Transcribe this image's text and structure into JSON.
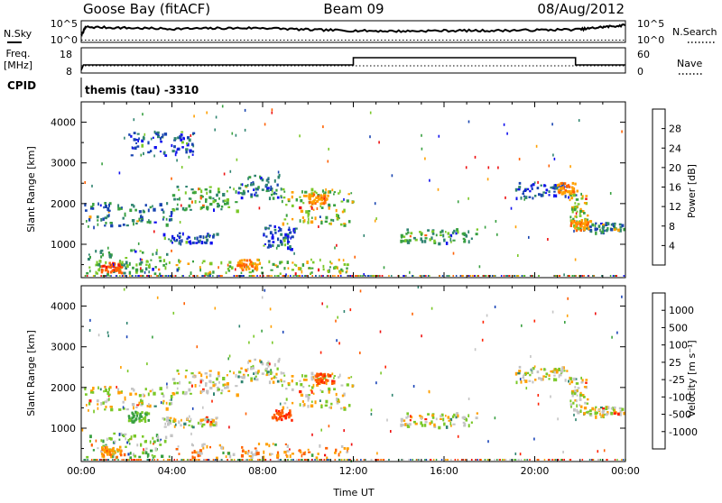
{
  "header": {
    "station": "Goose Bay (fitACF)",
    "beam": "Beam 09",
    "date": "08/Aug/2012"
  },
  "top_panels": {
    "nsky_label": "N.Sky",
    "nsearch_label": "N.Search",
    "noise_ticks": [
      "10^5",
      "10^0"
    ],
    "freq_label": "Freq.",
    "freq_unit": "[MHz]",
    "freq_ticks": [
      "18",
      "8"
    ],
    "nave_label": "Nave",
    "nave_ticks": [
      "60",
      "0"
    ],
    "cpid_label": "CPID",
    "cpid_text": "themis (tau) -3310"
  },
  "chart_data": [
    {
      "type": "line",
      "name": "noise",
      "series": [
        {
          "name": "N.Sky",
          "x": [
            0,
            0.2,
            2,
            4,
            6,
            8,
            10,
            12,
            14,
            16,
            18,
            20,
            22,
            23,
            24
          ],
          "values": [
            0.3,
            0.75,
            0.7,
            0.65,
            0.68,
            0.7,
            0.6,
            0.55,
            0.52,
            0.55,
            0.55,
            0.58,
            0.62,
            0.75,
            0.85
          ]
        },
        {
          "name": "N.Search",
          "x": [
            0,
            24
          ],
          "values": [
            0,
            0
          ]
        }
      ]
    },
    {
      "type": "line",
      "name": "frequency-nave",
      "series": [
        {
          "name": "Freq. [MHz]",
          "x": [
            0,
            0.1,
            12,
            12,
            21.8,
            21.8,
            24
          ],
          "values": [
            8,
            11,
            11,
            15,
            15,
            11,
            11
          ]
        },
        {
          "name": "Nave",
          "x": [
            0,
            24
          ],
          "values": [
            10,
            10
          ]
        }
      ]
    },
    {
      "type": "heatmap",
      "name": "power",
      "xlabel": "",
      "ylabel": "Slant Range [km]",
      "x_range": [
        0,
        24
      ],
      "y_range": [
        180,
        4500
      ],
      "y_ticks": [
        1000,
        2000,
        3000,
        4000
      ],
      "colorbar_label": "Power [dB]",
      "colorbar_ticks": [
        4,
        8,
        12,
        16,
        20,
        24,
        28
      ],
      "colors": [
        "#1010ee",
        "#1844b0",
        "#2f8470",
        "#38a040",
        "#7ac828",
        "#ffa000",
        "#ff6000",
        "#ee1010"
      ],
      "bands": [
        {
          "x0": 0.1,
          "x1": 4.0,
          "y0": 1450,
          "y1": 2050,
          "level": 2
        },
        {
          "x0": 4.0,
          "x1": 7.0,
          "y0": 1850,
          "y1": 2450,
          "level": 3
        },
        {
          "x0": 7.0,
          "x1": 8.8,
          "y0": 2150,
          "y1": 2750,
          "level": 2
        },
        {
          "x0": 8.8,
          "x1": 12.0,
          "y0": 1500,
          "y1": 2400,
          "level": 4
        },
        {
          "x0": 14.0,
          "x1": 17.5,
          "y0": 1050,
          "y1": 1400,
          "level": 3
        },
        {
          "x0": 19.0,
          "x1": 21.5,
          "y0": 2150,
          "y1": 2550,
          "level": 1
        },
        {
          "x0": 21.5,
          "x1": 22.3,
          "y0": 1350,
          "y1": 2300,
          "level": 4
        },
        {
          "x0": 22.3,
          "x1": 23.9,
          "y0": 1300,
          "y1": 1550,
          "level": 2
        },
        {
          "x0": 2.0,
          "x1": 5.0,
          "y0": 3200,
          "y1": 3800,
          "level": 1
        },
        {
          "x0": 3.5,
          "x1": 6.0,
          "y0": 1050,
          "y1": 1300,
          "level": 1
        },
        {
          "x0": 0.2,
          "x1": 4.0,
          "y0": 300,
          "y1": 900,
          "level": 3
        },
        {
          "x0": 4.0,
          "x1": 12.0,
          "y0": 300,
          "y1": 650,
          "level": 4
        },
        {
          "x0": 8.0,
          "x1": 9.5,
          "y0": 900,
          "y1": 1500,
          "level": 1
        }
      ],
      "hotspots": [
        {
          "x": 1.3,
          "y": 450,
          "level": 6
        },
        {
          "x": 7.3,
          "y": 520,
          "level": 5
        },
        {
          "x": 10.4,
          "y": 2150,
          "level": 5
        },
        {
          "x": 21.4,
          "y": 2400,
          "level": 5
        },
        {
          "x": 22.0,
          "y": 1500,
          "level": 5
        }
      ]
    },
    {
      "type": "heatmap",
      "name": "velocity",
      "xlabel": "Time UT",
      "ylabel": "Slant Range [km]",
      "x_range": [
        0,
        24
      ],
      "x_ticks": [
        "00:00",
        "04:00",
        "08:00",
        "12:00",
        "16:00",
        "20:00",
        "00:00"
      ],
      "y_range": [
        180,
        4500
      ],
      "y_ticks": [
        1000,
        2000,
        3000,
        4000
      ],
      "colorbar_label": "Velocity [m s⁻¹]",
      "colorbar_ticks": [
        "1000",
        "500",
        "100",
        "25",
        "-25",
        "-100",
        "-500",
        "-1000"
      ],
      "colors": [
        "#1a44b8",
        "#2f8470",
        "#38a040",
        "#7ac828",
        "#c4c4c4",
        "#ffa000",
        "#ff6000",
        "#ff2000",
        "#ee1010"
      ],
      "bands": [
        {
          "x0": 0.1,
          "x1": 4.0,
          "y0": 1450,
          "y1": 2050,
          "level": 4
        },
        {
          "x0": 4.0,
          "x1": 7.0,
          "y0": 1850,
          "y1": 2450,
          "level": 4
        },
        {
          "x0": 7.0,
          "x1": 8.8,
          "y0": 2150,
          "y1": 2750,
          "level": 4
        },
        {
          "x0": 8.8,
          "x1": 12.0,
          "y0": 1500,
          "y1": 2400,
          "level": 4
        },
        {
          "x0": 14.0,
          "x1": 17.5,
          "y0": 1050,
          "y1": 1400,
          "level": 4
        },
        {
          "x0": 19.0,
          "x1": 21.5,
          "y0": 2150,
          "y1": 2550,
          "level": 4
        },
        {
          "x0": 21.5,
          "x1": 22.3,
          "y0": 1350,
          "y1": 2300,
          "level": 4
        },
        {
          "x0": 22.3,
          "x1": 23.9,
          "y0": 1300,
          "y1": 1550,
          "level": 4
        },
        {
          "x0": 3.5,
          "x1": 6.0,
          "y0": 1050,
          "y1": 1300,
          "level": 4
        },
        {
          "x0": 0.2,
          "x1": 4.0,
          "y0": 300,
          "y1": 900,
          "level": 3
        },
        {
          "x0": 4.0,
          "x1": 12.0,
          "y0": 300,
          "y1": 650,
          "level": 5
        }
      ],
      "hotspots": [
        {
          "x": 10.7,
          "y": 2250,
          "level": 6
        },
        {
          "x": 8.8,
          "y": 1350,
          "level": 6
        },
        {
          "x": 1.3,
          "y": 450,
          "level": 5
        },
        {
          "x": 2.5,
          "y": 1300,
          "level": 2
        }
      ]
    }
  ]
}
